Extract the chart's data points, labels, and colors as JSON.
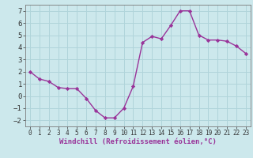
{
  "x": [
    0,
    1,
    2,
    3,
    4,
    5,
    6,
    7,
    8,
    9,
    10,
    11,
    12,
    13,
    14,
    15,
    16,
    17,
    18,
    19,
    20,
    21,
    22,
    23
  ],
  "y": [
    2.0,
    1.4,
    1.2,
    0.7,
    0.6,
    0.6,
    -0.2,
    -1.2,
    -1.8,
    -1.8,
    -1.0,
    0.8,
    4.4,
    4.9,
    4.7,
    5.8,
    7.0,
    7.0,
    5.0,
    4.6,
    4.6,
    4.5,
    4.1,
    3.5
  ],
  "line_color": "#993399",
  "marker": "D",
  "marker_size": 2.2,
  "bg_color": "#cce8ec",
  "grid_color": "#b0d4da",
  "xlabel": "Windchill (Refroidissement éolien,°C)",
  "xlabel_fontsize": 6.5,
  "ylabel_ticks": [
    -2,
    -1,
    0,
    1,
    2,
    3,
    4,
    5,
    6,
    7
  ],
  "xlim": [
    -0.5,
    23.5
  ],
  "ylim": [
    -2.5,
    7.5
  ],
  "xtick_labels": [
    "0",
    "1",
    "2",
    "3",
    "4",
    "5",
    "6",
    "7",
    "8",
    "9",
    "10",
    "11",
    "12",
    "13",
    "14",
    "15",
    "16",
    "17",
    "18",
    "19",
    "20",
    "21",
    "22",
    "23"
  ],
  "ytick_fontsize": 6.5,
  "xtick_fontsize": 5.5,
  "line_width": 1.0,
  "spine_color": "#7a7a7a",
  "tick_color": "#333333",
  "label_color": "#993399"
}
